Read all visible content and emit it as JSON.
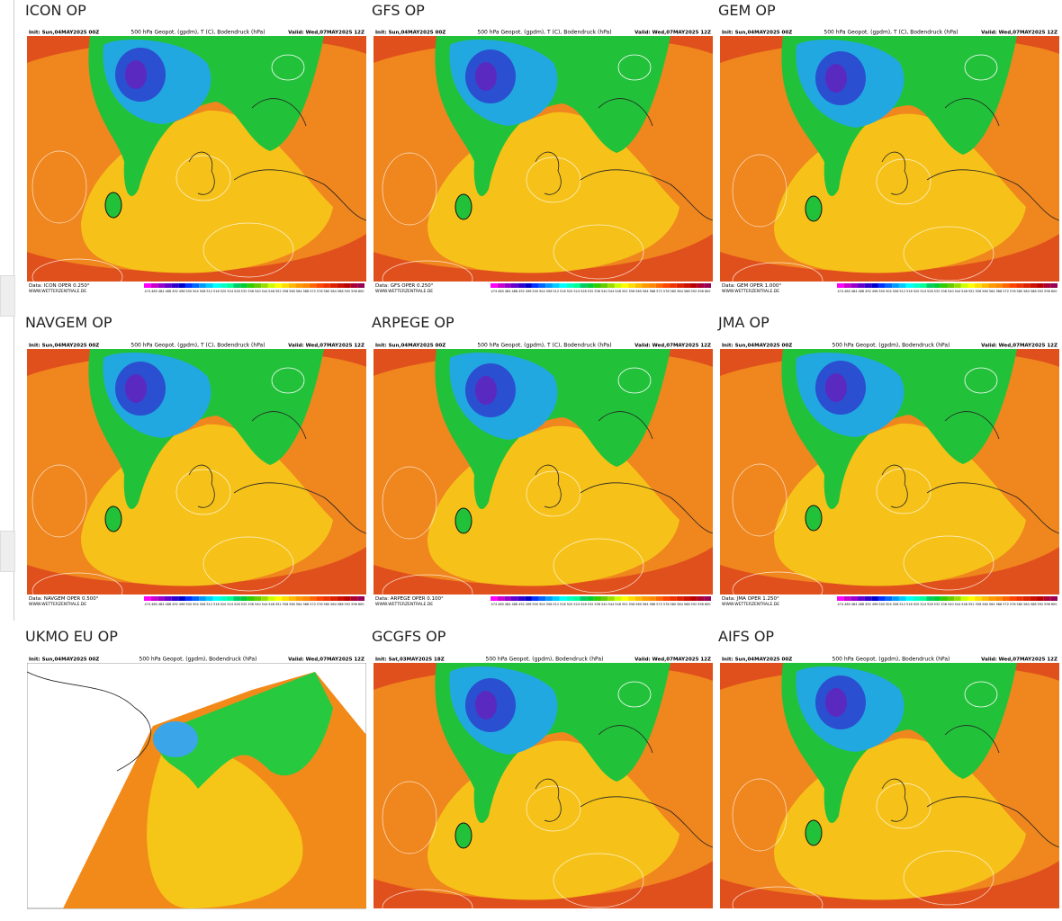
{
  "panels": [
    {
      "title": "ICON OP",
      "init": "Init: Sun,04MAY2025 00Z",
      "field": "500 hPa Geopot. (gpdm), T (C), Bodendruck (hPa)",
      "valid": "Valid: Wed,07MAY2025 12Z",
      "data": "Data: ICON OPER 0.250°",
      "site": "WWW.WETTERZENTRALE.DE"
    },
    {
      "title": "GFS OP",
      "init": "Init: Sun,04MAY2025 00Z",
      "field": "500 hPa Geopot. (gpdm), T (C), Bodendruck (hPa)",
      "valid": "Valid: Wed,07MAY2025 12Z",
      "data": "Data: GFS OPER 0.250°",
      "site": "WWW.WETTERZENTRALE.DE"
    },
    {
      "title": "GEM OP",
      "init": "Init: Sun,04MAY2025 00Z",
      "field": "500 hPa Geopot. (gpdm), T (C), Bodendruck (hPa)",
      "valid": "Valid: Wed,07MAY2025 12Z",
      "data": "Data: GEM OPER 1.000°",
      "site": "WWW.WETTERZENTRALE.DE"
    },
    {
      "title": "NAVGEM OP",
      "init": "Init: Sun,04MAY2025 00Z",
      "field": "500 hPa Geopot. (gpdm), T (C), Bodendruck (hPa)",
      "valid": "Valid: Wed,07MAY2025 12Z",
      "data": "Data: NAVGEM OPER 0.500°",
      "site": "WWW.WETTERZENTRALE.DE"
    },
    {
      "title": "ARPEGE OP",
      "init": "Init: Sun,04MAY2025 00Z",
      "field": "500 hPa Geopot. (gpdm), T (C), Bodendruck (hPa)",
      "valid": "Valid: Wed,07MAY2025 12Z",
      "data": "Data: ARPEGE OPER 0.100°",
      "site": "WWW.WETTERZENTRALE.DE"
    },
    {
      "title": "JMA OP",
      "init": "Init: Sun,04MAY2025 00Z",
      "field": "500 hPa Geopot. (gpdm), Bodendruck (hPa)",
      "valid": "Valid: Wed,07MAY2025 12Z",
      "data": "Data: JMA OPER 1.250°",
      "site": "WWW.WETTERZENTRALE.DE"
    },
    {
      "title": "UKMO EU OP",
      "init": "Init: Sun,04MAY2025 00Z",
      "field": "500 hPa Geopot. (gpdm), Bodendruck (hPa)",
      "valid": "Valid: Wed,07MAY2025 12Z"
    },
    {
      "title": "GCGFS OP",
      "init": "Init: Sat,03MAY2025 18Z",
      "field": "500 hPa Geopot. (gpdm), Bodendruck (hPa)",
      "valid": "Valid: Wed,07MAY2025 12Z"
    },
    {
      "title": "AIFS OP",
      "init": "Init: Sun,04MAY2025 00Z",
      "field": "500 hPa Geopot. (gpdm), Bodendruck (hPa)",
      "valid": "Valid: Wed,07MAY2025 12Z"
    }
  ],
  "colorbar_labels": [
    474,
    480,
    484,
    488,
    492,
    496,
    500,
    504,
    508,
    512,
    516,
    520,
    524,
    528,
    532,
    536,
    540,
    544,
    548,
    552,
    556,
    560,
    564,
    568,
    572,
    576,
    580,
    584,
    588,
    592,
    596,
    600
  ]
}
